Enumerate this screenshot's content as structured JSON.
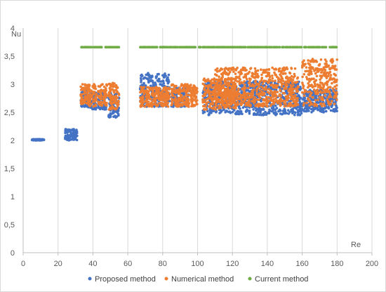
{
  "chart_data": {
    "type": "scatter",
    "xlabel": "Re",
    "ylabel": "Nu",
    "xlim": [
      0,
      200
    ],
    "ylim": [
      0,
      4
    ],
    "x_ticks": [
      "0",
      "20",
      "40",
      "60",
      "80",
      "100",
      "120",
      "140",
      "160",
      "180",
      "200"
    ],
    "y_ticks": [
      "0",
      "0,5",
      "1",
      "1,5",
      "2",
      "2,5",
      "3",
      "3,5",
      "4"
    ],
    "grid": "vertical",
    "legend_position": "bottom",
    "series": [
      {
        "name": "Proposed method",
        "color": "#4472C4",
        "clusters": [
          {
            "x": [
              5,
              12
            ],
            "y": [
              2.0,
              2.02
            ]
          },
          {
            "x": [
              24,
              31
            ],
            "y": [
              2.0,
              2.2
            ]
          },
          {
            "x": [
              33,
              37
            ],
            "y": [
              2.6,
              2.9
            ]
          },
          {
            "x": [
              37,
              42
            ],
            "y": [
              2.55,
              2.85
            ]
          },
          {
            "x": [
              43,
              48
            ],
            "y": [
              2.55,
              2.85
            ]
          },
          {
            "x": [
              49,
              55
            ],
            "y": [
              2.4,
              2.85
            ]
          },
          {
            "x": [
              67,
              84
            ],
            "y": [
              2.6,
              3.2
            ]
          },
          {
            "x": [
              85,
              95
            ],
            "y": [
              2.6,
              2.95
            ]
          },
          {
            "x": [
              103,
              160
            ],
            "y": [
              2.45,
              3.05
            ]
          },
          {
            "x": [
              160,
              180
            ],
            "y": [
              2.5,
              2.9
            ]
          }
        ]
      },
      {
        "name": "Numerical method",
        "color": "#ED7D31",
        "clusters": [
          {
            "x": [
              33,
              37
            ],
            "y": [
              2.65,
              3.0
            ]
          },
          {
            "x": [
              37,
              42
            ],
            "y": [
              2.6,
              3.0
            ]
          },
          {
            "x": [
              43,
              48
            ],
            "y": [
              2.6,
              3.0
            ]
          },
          {
            "x": [
              49,
              55
            ],
            "y": [
              2.55,
              3.05
            ]
          },
          {
            "x": [
              67,
              84
            ],
            "y": [
              2.6,
              2.95
            ]
          },
          {
            "x": [
              85,
              100
            ],
            "y": [
              2.6,
              3.0
            ]
          },
          {
            "x": [
              103,
              122
            ],
            "y": [
              2.55,
              3.1
            ]
          },
          {
            "x": [
              110,
              158
            ],
            "y": [
              2.6,
              3.3
            ]
          },
          {
            "x": [
              160,
              180
            ],
            "y": [
              2.6,
              3.45
            ]
          }
        ]
      },
      {
        "name": "Current method",
        "color": "#70AD47",
        "clusters": [
          {
            "x": [
              33,
              45
            ],
            "y": [
              3.66,
              3.66
            ]
          },
          {
            "x": [
              47,
              55
            ],
            "y": [
              3.66,
              3.66
            ]
          },
          {
            "x": [
              67,
              180
            ],
            "y": [
              3.66,
              3.66
            ]
          }
        ]
      }
    ]
  }
}
